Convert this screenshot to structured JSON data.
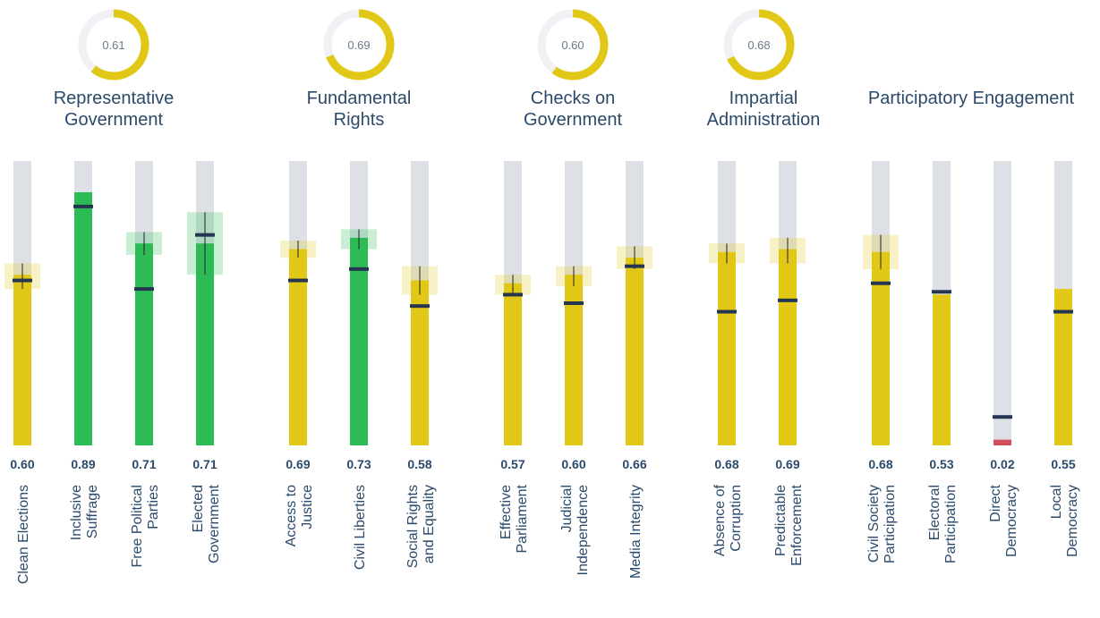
{
  "chart_data": {
    "type": "bullet",
    "ylim": [
      0,
      1
    ],
    "groups": [
      {
        "title": [
          "Representative",
          "Government"
        ],
        "score": 0.61,
        "score_label": "0.61",
        "items": [
          {
            "label": [
              "Clean Elections"
            ],
            "value": 0.6,
            "value_label": "0.60",
            "marker": 0.58,
            "ci": [
              0.55,
              0.64
            ],
            "color": "#e2c816"
          },
          {
            "label": [
              "Inclusive",
              "Suffrage"
            ],
            "value": 0.89,
            "value_label": "0.89",
            "marker": 0.84,
            "ci": null,
            "color": "#2dbb55"
          },
          {
            "label": [
              "Free Political",
              "Parties"
            ],
            "value": 0.71,
            "value_label": "0.71",
            "marker": 0.55,
            "ci": [
              0.67,
              0.75
            ],
            "color": "#2dbb55"
          },
          {
            "label": [
              "Elected",
              "Government"
            ],
            "value": 0.71,
            "value_label": "0.71",
            "marker": 0.74,
            "ci": [
              0.6,
              0.82
            ],
            "color": "#2dbb55"
          }
        ]
      },
      {
        "title": [
          "Fundamental",
          "Rights"
        ],
        "score": 0.69,
        "score_label": "0.69",
        "items": [
          {
            "label": [
              "Access to",
              "Justice"
            ],
            "value": 0.69,
            "value_label": "0.69",
            "marker": 0.58,
            "ci": [
              0.66,
              0.72
            ],
            "color": "#e2c816"
          },
          {
            "label": [
              "Civil Liberties"
            ],
            "value": 0.73,
            "value_label": "0.73",
            "marker": 0.62,
            "ci": [
              0.69,
              0.76
            ],
            "color": "#2dbb55"
          },
          {
            "label": [
              "Social Rights",
              "and Equality"
            ],
            "value": 0.58,
            "value_label": "0.58",
            "marker": 0.49,
            "ci": [
              0.53,
              0.63
            ],
            "color": "#e2c816"
          }
        ]
      },
      {
        "title": [
          "Checks on",
          "Government"
        ],
        "score": 0.6,
        "score_label": "0.60",
        "items": [
          {
            "label": [
              "Effective",
              "Parliament"
            ],
            "value": 0.57,
            "value_label": "0.57",
            "marker": 0.53,
            "ci": [
              0.53,
              0.6
            ],
            "color": "#e2c816"
          },
          {
            "label": [
              "Judicial",
              "Independence"
            ],
            "value": 0.6,
            "value_label": "0.60",
            "marker": 0.5,
            "ci": [
              0.56,
              0.63
            ],
            "color": "#e2c816"
          },
          {
            "label": [
              "Media Integrity"
            ],
            "value": 0.66,
            "value_label": "0.66",
            "marker": 0.63,
            "ci": [
              0.62,
              0.7
            ],
            "color": "#e2c816"
          }
        ]
      },
      {
        "title": [
          "Impartial",
          "Administration"
        ],
        "score": 0.68,
        "score_label": "0.68",
        "items": [
          {
            "label": [
              "Absence of",
              "Corruption"
            ],
            "value": 0.68,
            "value_label": "0.68",
            "marker": 0.47,
            "ci": [
              0.64,
              0.71
            ],
            "color": "#e2c816"
          },
          {
            "label": [
              "Predictable",
              "Enforcement"
            ],
            "value": 0.69,
            "value_label": "0.69",
            "marker": 0.51,
            "ci": [
              0.64,
              0.73
            ],
            "color": "#e2c816"
          }
        ]
      },
      {
        "title": [
          "Participatory Engagement"
        ],
        "score": null,
        "score_label": null,
        "items": [
          {
            "label": [
              "Civil Society",
              "Participation"
            ],
            "value": 0.68,
            "value_label": "0.68",
            "marker": 0.57,
            "ci": [
              0.62,
              0.74
            ],
            "color": "#e2c816"
          },
          {
            "label": [
              "Electoral",
              "Participation"
            ],
            "value": 0.53,
            "value_label": "0.53",
            "marker": 0.54,
            "ci": null,
            "color": "#e2c816"
          },
          {
            "label": [
              "Direct",
              "Democracy"
            ],
            "value": 0.02,
            "value_label": "0.02",
            "marker": 0.1,
            "ci": null,
            "color": "#d0505a"
          },
          {
            "label": [
              "Local",
              "Democracy"
            ],
            "value": 0.55,
            "value_label": "0.55",
            "marker": 0.47,
            "ci": null,
            "color": "#e2c816"
          }
        ]
      }
    ]
  }
}
